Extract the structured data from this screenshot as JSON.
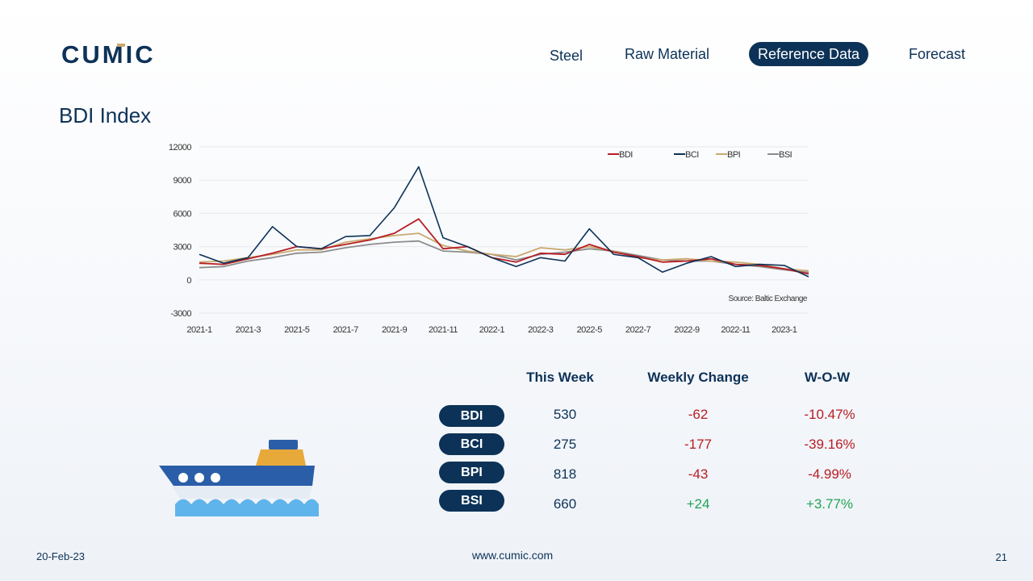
{
  "brand": {
    "logo_text": "CUMIC"
  },
  "nav": {
    "items": [
      "Steel",
      "Raw Material",
      "Reference Data",
      "Forecast"
    ],
    "active": "Reference Data"
  },
  "page": {
    "title": "BDI Index"
  },
  "colors": {
    "primary": "#0d3257",
    "BDI": "#b81d24",
    "BCI": "#0d3257",
    "BPI": "#c9a96e",
    "BSI": "#8c8c8c",
    "negative": "#b81d24",
    "positive": "#21a356"
  },
  "chart_data": {
    "type": "line",
    "title": "",
    "source": "Source: Baltic Exchange",
    "ylim": [
      -3000,
      12000
    ],
    "yticks": [
      "12000",
      "9000",
      "6000",
      "3000",
      "0",
      "-3000"
    ],
    "xticks": [
      "2021-1",
      "2021-3",
      "2021-5",
      "2021-7",
      "2021-9",
      "2021-11",
      "2022-1",
      "2022-3",
      "2022-5",
      "2022-7",
      "2022-9",
      "2022-11",
      "2023-1"
    ],
    "legend_position": "top-right",
    "grid": true,
    "x": [
      "2021-01",
      "2021-02",
      "2021-03",
      "2021-04",
      "2021-05",
      "2021-06",
      "2021-07",
      "2021-08",
      "2021-09",
      "2021-10",
      "2021-11",
      "2021-12",
      "2022-01",
      "2022-02",
      "2022-03",
      "2022-04",
      "2022-05",
      "2022-06",
      "2022-07",
      "2022-08",
      "2022-09",
      "2022-10",
      "2022-11",
      "2022-12",
      "2023-01",
      "2023-02"
    ],
    "series": [
      {
        "name": "BDI",
        "values": [
          1500,
          1400,
          1900,
          2400,
          3000,
          2800,
          3200,
          3600,
          4200,
          5500,
          2800,
          3000,
          2000,
          1600,
          2400,
          2300,
          3200,
          2500,
          2100,
          1600,
          1700,
          1900,
          1400,
          1300,
          1000,
          530
        ]
      },
      {
        "name": "BCI",
        "values": [
          2300,
          1500,
          2000,
          4800,
          3000,
          2800,
          3900,
          4000,
          6500,
          10200,
          3800,
          3000,
          2000,
          1200,
          2000,
          1700,
          4600,
          2300,
          2000,
          700,
          1500,
          2100,
          1200,
          1400,
          1300,
          275
        ]
      },
      {
        "name": "BPI",
        "values": [
          1600,
          1700,
          2000,
          2300,
          2700,
          2700,
          3400,
          3700,
          4000,
          4200,
          3100,
          2600,
          2300,
          2100,
          2900,
          2700,
          3000,
          2600,
          2000,
          1800,
          1900,
          1700,
          1600,
          1400,
          1000,
          818
        ]
      },
      {
        "name": "BSI",
        "values": [
          1100,
          1200,
          1700,
          2000,
          2400,
          2500,
          2900,
          3200,
          3400,
          3500,
          2600,
          2500,
          2300,
          1800,
          2300,
          2500,
          2800,
          2600,
          2200,
          1800,
          1700,
          1700,
          1400,
          1200,
          900,
          660
        ]
      }
    ]
  },
  "table": {
    "headers": [
      "This Week",
      "Weekly Change",
      "W-O-W"
    ],
    "rows": [
      {
        "label": "BDI",
        "this_week": "530",
        "change": "-62",
        "wow": "-10.47%",
        "direction": "neg"
      },
      {
        "label": "BCI",
        "this_week": "275",
        "change": "-177",
        "wow": "-39.16%",
        "direction": "neg"
      },
      {
        "label": "BPI",
        "this_week": "818",
        "change": "-43",
        "wow": "-4.99%",
        "direction": "neg"
      },
      {
        "label": "BSI",
        "this_week": "660",
        "change": "+24",
        "wow": "+3.77%",
        "direction": "pos"
      }
    ]
  },
  "footer": {
    "date": "20-Feb-23",
    "url": "www.cumic.com",
    "page_number": "21"
  },
  "icons": {
    "ship": "cargo-ship-icon"
  }
}
